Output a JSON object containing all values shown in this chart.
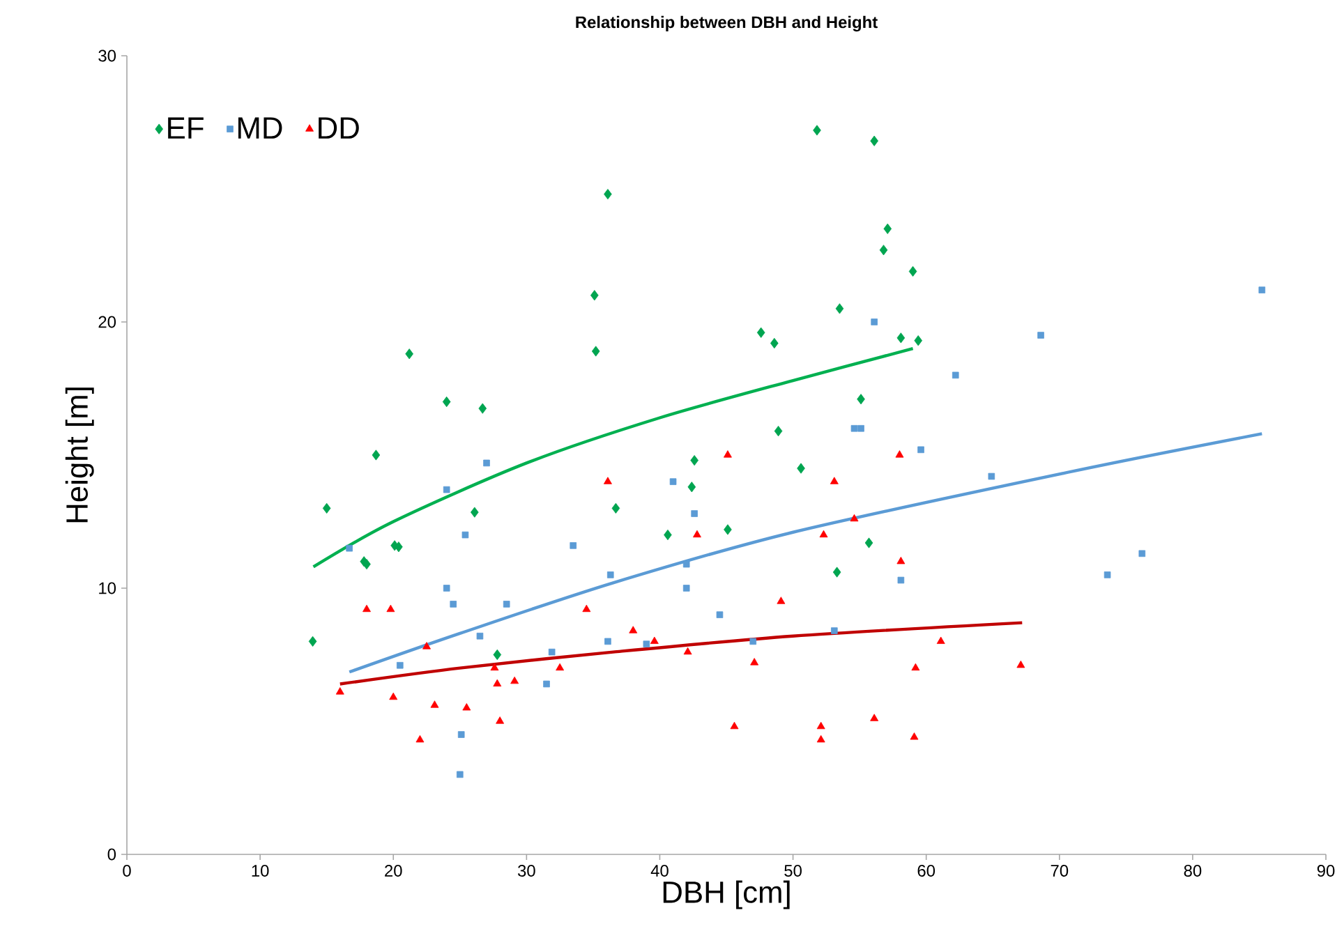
{
  "chart_data": {
    "type": "scatter",
    "title": "Relationship between DBH and Height",
    "xlabel": "DBH [cm]",
    "ylabel": "Height [m]",
    "xlim": [
      0,
      90
    ],
    "ylim": [
      0,
      30
    ],
    "xticks": [
      0,
      10,
      20,
      30,
      40,
      50,
      60,
      70,
      80,
      90
    ],
    "yticks": [
      0,
      10,
      20,
      30
    ],
    "legend": "top left",
    "series": [
      {
        "name": "EF",
        "marker": "diamond",
        "color": "#00a550",
        "x": [
          13.95,
          15.0,
          17.8,
          18.0,
          18.7,
          20.1,
          20.4,
          21.2,
          24.0,
          26.1,
          26.7,
          27.8,
          35.1,
          35.2,
          36.1,
          36.7,
          40.6,
          42.4,
          42.6,
          45.1,
          47.6,
          48.6,
          48.9,
          50.6,
          51.8,
          53.3,
          53.5,
          55.1,
          55.7,
          56.1,
          56.8,
          57.1,
          58.1,
          59.0,
          59.4
        ],
        "values": [
          8.0,
          13.0,
          11.0,
          10.9,
          15.0,
          11.6,
          11.55,
          18.8,
          17.0,
          12.85,
          16.75,
          7.5,
          21.0,
          18.9,
          24.8,
          13.0,
          12.0,
          13.8,
          14.8,
          12.2,
          19.6,
          19.2,
          15.9,
          14.5,
          27.2,
          10.6,
          20.5,
          17.1,
          11.7,
          26.8,
          22.7,
          23.5,
          19.4,
          21.9,
          19.3
        ]
      },
      {
        "name": "MD",
        "marker": "square",
        "color": "#5b9bd5",
        "x": [
          16.7,
          20.5,
          24.0,
          24.0,
          24.5,
          25.0,
          25.1,
          25.4,
          26.5,
          27.0,
          28.5,
          31.5,
          31.9,
          33.5,
          36.1,
          36.3,
          39.0,
          41.0,
          42.0,
          42.0,
          42.6,
          44.5,
          47.0,
          53.1,
          54.6,
          55.1,
          56.1,
          58.1,
          59.6,
          62.2,
          64.9,
          68.6,
          73.6,
          76.2,
          85.2
        ],
        "values": [
          11.5,
          7.1,
          13.7,
          10.0,
          9.4,
          3.0,
          4.5,
          12.0,
          8.2,
          14.7,
          9.4,
          6.4,
          7.6,
          11.6,
          8.0,
          10.5,
          7.9,
          14.0,
          10.9,
          10.0,
          12.8,
          9.0,
          8.0,
          8.4,
          16.0,
          16.0,
          20.0,
          10.3,
          15.2,
          18.0,
          14.2,
          19.5,
          10.5,
          11.3,
          21.2
        ]
      },
      {
        "name": "DD",
        "marker": "triangle",
        "color": "#ff0000",
        "x": [
          16.0,
          18.0,
          19.8,
          20.0,
          22.0,
          22.5,
          23.1,
          25.5,
          27.6,
          27.8,
          28.0,
          29.1,
          32.5,
          34.5,
          36.1,
          38.0,
          39.6,
          42.1,
          42.8,
          45.1,
          45.6,
          47.1,
          49.1,
          52.1,
          52.1,
          52.3,
          53.1,
          54.6,
          56.1,
          58.0,
          58.1,
          59.1,
          59.2,
          61.1,
          67.1
        ],
        "values": [
          6.1,
          9.2,
          9.2,
          5.9,
          4.3,
          7.8,
          5.6,
          5.5,
          7.0,
          6.4,
          5.0,
          6.5,
          7.0,
          9.2,
          14.0,
          8.4,
          8.0,
          7.6,
          12.0,
          15.0,
          4.8,
          7.2,
          9.5,
          4.8,
          4.3,
          12.0,
          14.0,
          12.6,
          5.1,
          15.0,
          11.0,
          4.4,
          7.0,
          8.0,
          7.1
        ]
      },
      {
        "type": "line",
        "line_style": "solid",
        "color": "#00b050",
        "x": [
          14.0,
          20.0,
          30.0,
          40.0,
          50.0,
          59.0
        ],
        "values": [
          10.8,
          12.5,
          14.7,
          16.4,
          17.8,
          19.0
        ]
      },
      {
        "type": "line",
        "line_style": "solid",
        "color": "#5b9bd5",
        "x": [
          16.7,
          25.0,
          36.5,
          50.0,
          71.1,
          85.2
        ],
        "values": [
          6.85,
          8.3,
          10.2,
          12.1,
          14.4,
          15.8
        ]
      },
      {
        "type": "line",
        "line_style": "solid",
        "color": "#c00000",
        "x": [
          16.0,
          25.0,
          36.5,
          50.0,
          67.2
        ],
        "values": [
          6.4,
          7.0,
          7.6,
          8.2,
          8.7
        ]
      }
    ]
  }
}
